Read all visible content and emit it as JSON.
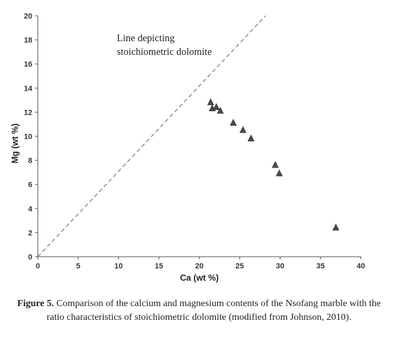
{
  "chart_data": {
    "type": "scatter",
    "title": "",
    "xlabel": "Ca (wt %)",
    "ylabel": "Mg (wt %)",
    "xlim": [
      0,
      40
    ],
    "ylim": [
      0,
      20
    ],
    "x_ticks": [
      0,
      5,
      10,
      15,
      20,
      25,
      30,
      35,
      40
    ],
    "y_ticks": [
      0,
      2,
      4,
      6,
      8,
      10,
      12,
      14,
      16,
      18,
      20
    ],
    "grid": false,
    "series": [
      {
        "marker": "triangle",
        "color": "#4a4a4a",
        "points": [
          {
            "x": 21.4,
            "y": 12.8
          },
          {
            "x": 21.6,
            "y": 12.3
          },
          {
            "x": 22.1,
            "y": 12.4
          },
          {
            "x": 22.6,
            "y": 12.1
          },
          {
            "x": 24.2,
            "y": 11.1
          },
          {
            "x": 25.4,
            "y": 10.5
          },
          {
            "x": 26.4,
            "y": 9.8
          },
          {
            "x": 29.4,
            "y": 7.6
          },
          {
            "x": 29.9,
            "y": 6.9
          },
          {
            "x": 36.9,
            "y": 2.4
          }
        ]
      }
    ],
    "reference_line": {
      "style": "dashed",
      "color": "#888888",
      "from": {
        "x": 0,
        "y": 0
      },
      "to": {
        "x": 28.2,
        "y": 20
      },
      "label_line1": "Line depicting",
      "label_line2": "stoichiometric dolomite"
    }
  },
  "caption": {
    "label": "Figure 5.",
    "text": " Comparison of the calcium and magnesium contents of the Nsofang marble with the ratio characteristics of stoichiometric dolomite (modified from Johnson, 2010)."
  }
}
